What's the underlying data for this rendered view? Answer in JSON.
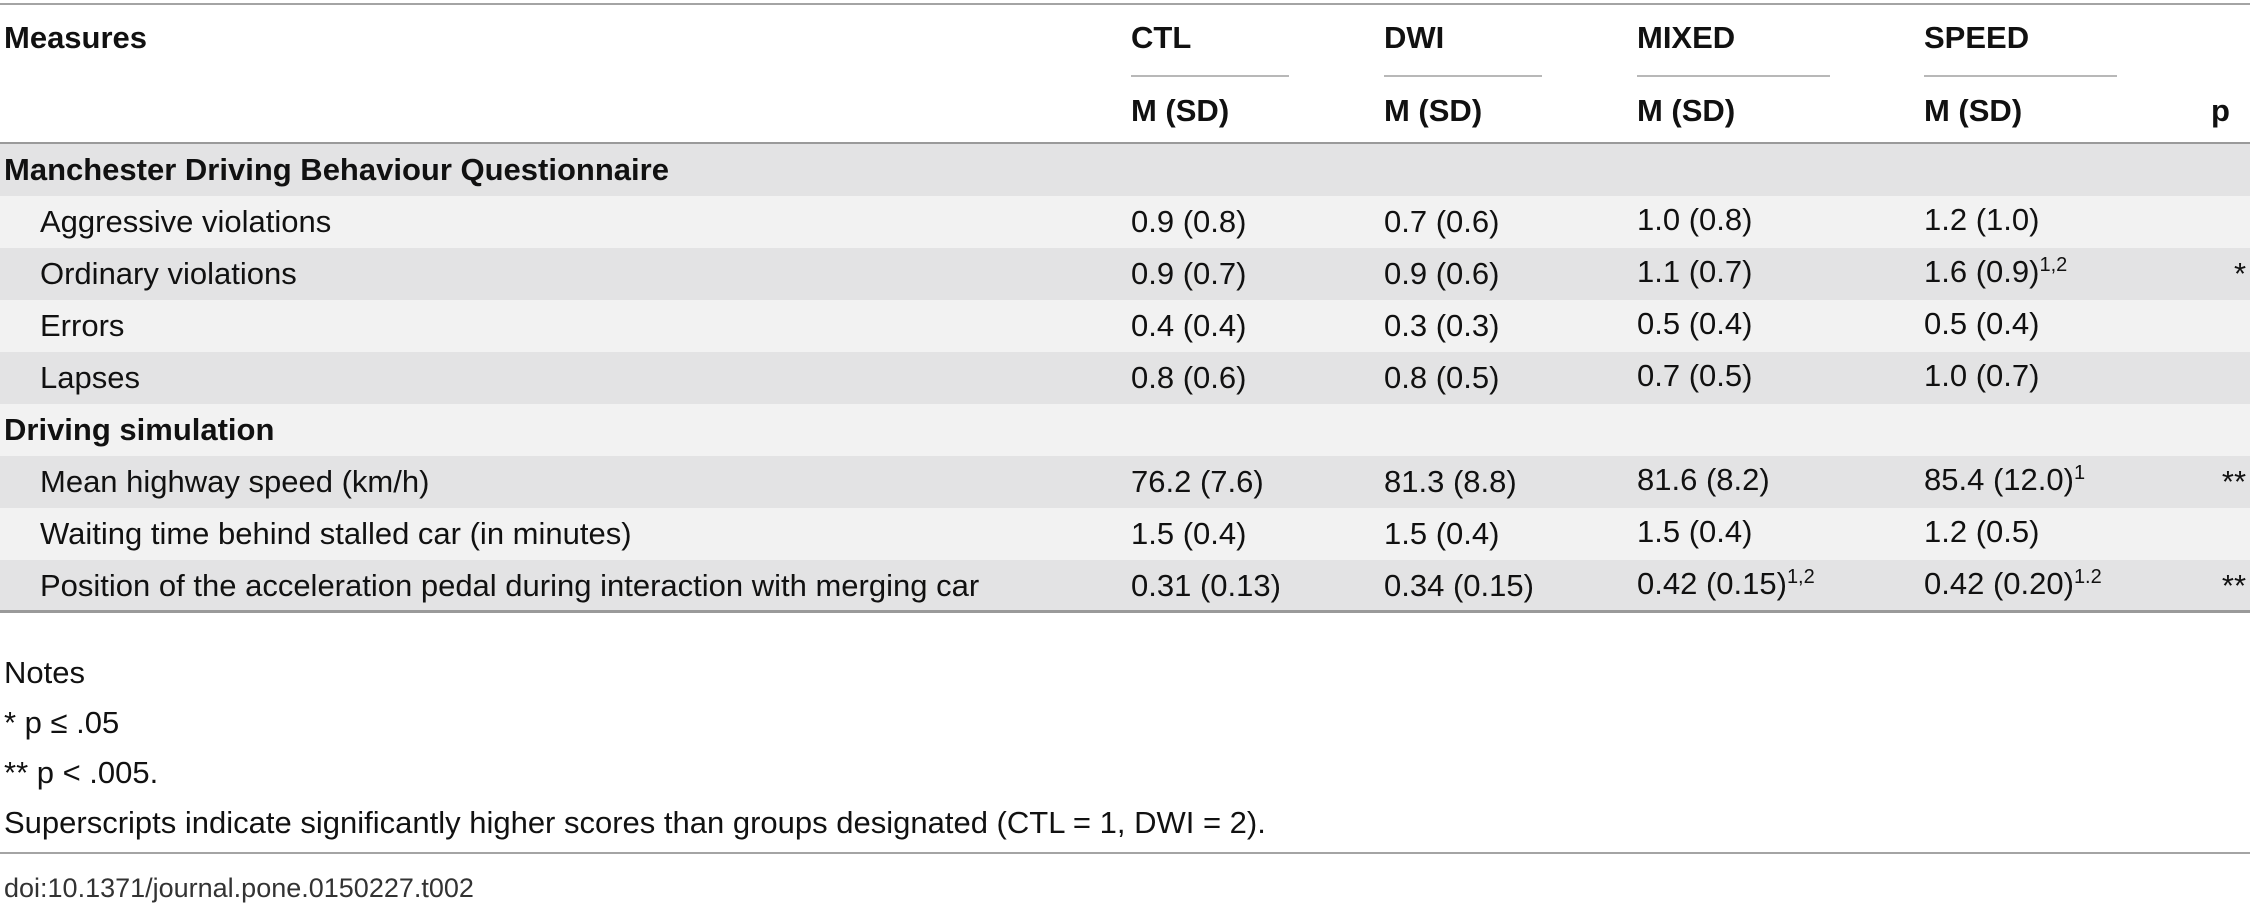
{
  "table": {
    "header": {
      "measures": "Measures",
      "groups": [
        {
          "name": "CTL",
          "sub": "M (SD)"
        },
        {
          "name": "DWI",
          "sub": "M (SD)"
        },
        {
          "name": "MIXED",
          "sub": "M (SD)"
        },
        {
          "name": "SPEED",
          "sub": "M (SD)"
        }
      ],
      "p": "p"
    },
    "sections": [
      {
        "title": "Manchester Driving Behaviour Questionnaire",
        "rows": [
          {
            "label": "Aggressive violations",
            "ctl": "0.9 (0.8)",
            "dwi": "0.7 (0.6)",
            "mixed": "1.0 (0.8)",
            "mixed_sup": "",
            "speed": "1.2 (1.0)",
            "speed_sup": "",
            "p": ""
          },
          {
            "label": "Ordinary violations",
            "ctl": "0.9 (0.7)",
            "dwi": "0.9 (0.6)",
            "mixed": "1.1 (0.7)",
            "mixed_sup": "",
            "speed": "1.6 (0.9)",
            "speed_sup": "1,2",
            "p": "*"
          },
          {
            "label": "Errors",
            "ctl": "0.4 (0.4)",
            "dwi": "0.3 (0.3)",
            "mixed": "0.5 (0.4)",
            "mixed_sup": "",
            "speed": "0.5 (0.4)",
            "speed_sup": "",
            "p": ""
          },
          {
            "label": "Lapses",
            "ctl": "0.8 (0.6)",
            "dwi": "0.8 (0.5)",
            "mixed": "0.7 (0.5)",
            "mixed_sup": "",
            "speed": "1.0 (0.7)",
            "speed_sup": "",
            "p": ""
          }
        ]
      },
      {
        "title": "Driving simulation",
        "rows": [
          {
            "label": "Mean highway speed (km/h)",
            "ctl": "76.2 (7.6)",
            "dwi": "81.3 (8.8)",
            "mixed": "81.6 (8.2)",
            "mixed_sup": "",
            "speed": "85.4 (12.0)",
            "speed_sup": "1",
            "p": "**"
          },
          {
            "label": "Waiting time behind stalled car (in minutes)",
            "ctl": "1.5 (0.4)",
            "dwi": "1.5 (0.4)",
            "mixed": "1.5 (0.4)",
            "mixed_sup": "",
            "speed": "1.2 (0.5)",
            "speed_sup": "",
            "p": ""
          },
          {
            "label": "Position of the acceleration pedal during interaction with merging car",
            "ctl": "0.31 (0.13)",
            "dwi": "0.34 (0.15)",
            "mixed": "0.42 (0.15)",
            "mixed_sup": "1,2",
            "speed": "0.42 (0.20)",
            "speed_sup": "1.2",
            "p": "**"
          }
        ]
      }
    ]
  },
  "notes": [
    "Notes",
    "* p ≤ .05",
    "** p < .005.",
    "Superscripts indicate significantly higher scores than groups designated (CTL = 1, DWI = 2)."
  ],
  "doi": "doi:10.1371/journal.pone.0150227.t002"
}
